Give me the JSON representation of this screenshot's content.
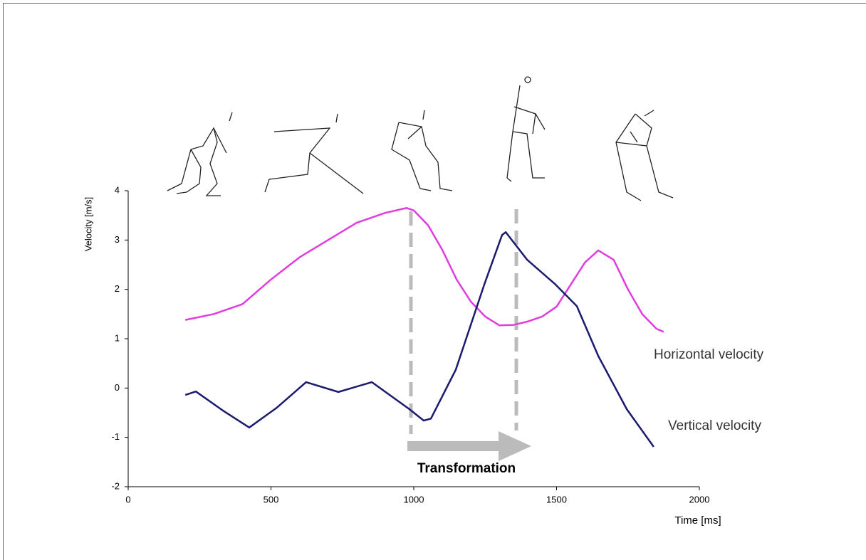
{
  "chart_data": {
    "type": "line",
    "y_label": "Velocity [m/s]",
    "x_label": "Time [ms]",
    "annotation": "Transformation",
    "xlim": [
      0,
      2000
    ],
    "xticks": [
      0,
      500,
      1000,
      1500,
      2000
    ],
    "ylim": [
      -2,
      4
    ],
    "yticks": [
      -2,
      -1,
      0,
      1,
      2,
      3,
      4
    ],
    "grid": false,
    "series": [
      {
        "name": "Horizontal velocity",
        "color": "#e03ce0",
        "x": [
          200,
          300,
          400,
          500,
          600,
          700,
          800,
          900,
          975,
          1000,
          1050,
          1100,
          1150,
          1200,
          1250,
          1300,
          1350,
          1400,
          1450,
          1500,
          1550,
          1600,
          1646,
          1700,
          1750,
          1800,
          1850,
          1875
        ],
        "values": [
          1.38,
          1.5,
          1.7,
          2.2,
          2.65,
          3.0,
          3.35,
          3.55,
          3.65,
          3.6,
          3.3,
          2.8,
          2.2,
          1.75,
          1.45,
          1.27,
          1.28,
          1.35,
          1.45,
          1.65,
          2.1,
          2.55,
          2.79,
          2.6,
          2.0,
          1.5,
          1.2,
          1.14
        ]
      },
      {
        "name": "Vertical velocity",
        "color": "#1a1a6e",
        "x": [
          200,
          237,
          330,
          424,
          520,
          623,
          736,
          853,
          985,
          1035,
          1060,
          1147,
          1247,
          1309,
          1322,
          1397,
          1496,
          1571,
          1646,
          1746,
          1840
        ],
        "values": [
          -0.14,
          -0.07,
          -0.45,
          -0.8,
          -0.4,
          0.12,
          -0.08,
          0.12,
          -0.43,
          -0.66,
          -0.62,
          0.37,
          2.1,
          3.1,
          3.16,
          2.6,
          2.1,
          1.66,
          0.65,
          -0.43,
          -1.19
        ]
      }
    ]
  }
}
